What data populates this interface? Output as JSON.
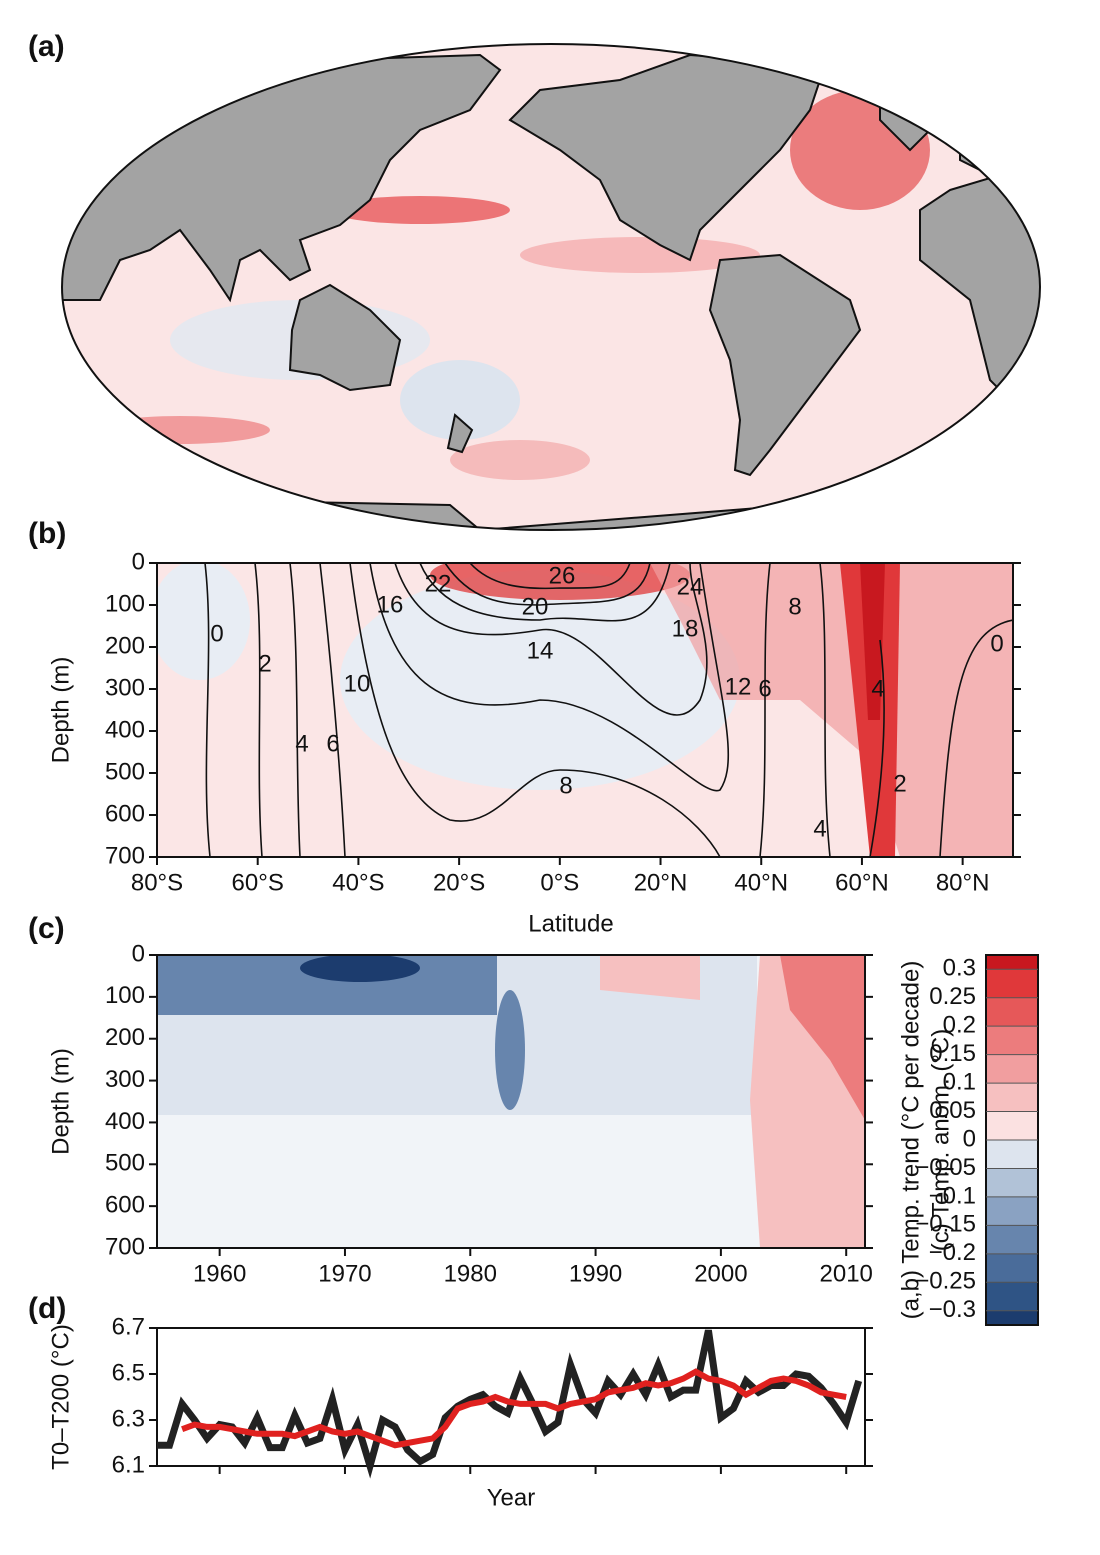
{
  "chart_data": [
    {
      "type": "map",
      "panel_label": "(a)"
    },
    {
      "type": "contour",
      "panel_label": "(b)",
      "xlabel": "Latitude",
      "ylabel": "Depth (m)",
      "xlim": [
        -80,
        90
      ],
      "xticks": [
        {
          "value": -80,
          "label": "80°S"
        },
        {
          "value": -60,
          "label": "60°S"
        },
        {
          "value": -40,
          "label": "40°S"
        },
        {
          "value": -20,
          "label": "20°S"
        },
        {
          "value": 0,
          "label": "0°S"
        },
        {
          "value": 20,
          "label": "20°N"
        },
        {
          "value": 40,
          "label": "40°N"
        },
        {
          "value": 60,
          "label": "60°N"
        },
        {
          "value": 80,
          "label": "80°N"
        }
      ],
      "ylim": [
        700,
        0
      ],
      "yticks": [
        0,
        100,
        200,
        300,
        400,
        500,
        600,
        700
      ],
      "contour_labels": [
        26,
        24,
        22,
        20,
        18,
        16,
        14,
        12,
        10,
        8,
        8,
        6,
        6,
        4,
        4,
        4,
        2,
        2,
        0,
        0
      ]
    },
    {
      "type": "contour",
      "panel_label": "(c)",
      "ylabel": "Depth (m)",
      "xlim": [
        1955,
        2011.5
      ],
      "xticks": [
        1960,
        1970,
        1980,
        1990,
        2000,
        2010
      ],
      "ylim": [
        700,
        0
      ],
      "yticks": [
        0,
        100,
        200,
        300,
        400,
        500,
        600,
        700
      ]
    },
    {
      "type": "line",
      "panel_label": "(d)",
      "xlabel": "Year",
      "ylabel": "T0–T200 (°C)",
      "x": [
        1955,
        1956,
        1957,
        1958,
        1959,
        1960,
        1961,
        1962,
        1963,
        1964,
        1965,
        1966,
        1967,
        1968,
        1969,
        1970,
        1971,
        1972,
        1973,
        1974,
        1975,
        1976,
        1977,
        1978,
        1979,
        1980,
        1981,
        1982,
        1983,
        1984,
        1985,
        1986,
        1987,
        1988,
        1989,
        1990,
        1991,
        1992,
        1993,
        1994,
        1995,
        1996,
        1997,
        1998,
        1999,
        2000,
        2001,
        2002,
        2003,
        2004,
        2005,
        2006,
        2007,
        2008,
        2009,
        2010,
        2011
      ],
      "series": [
        {
          "color": "#222222",
          "values": [
            6.19,
            6.19,
            6.37,
            6.3,
            6.22,
            6.28,
            6.27,
            6.2,
            6.31,
            6.18,
            6.18,
            6.32,
            6.2,
            6.22,
            6.39,
            6.17,
            6.28,
            6.1,
            6.3,
            6.27,
            6.17,
            6.12,
            6.15,
            6.31,
            6.36,
            6.39,
            6.41,
            6.36,
            6.33,
            6.48,
            6.37,
            6.25,
            6.29,
            6.54,
            6.39,
            6.33,
            6.47,
            6.41,
            6.5,
            6.41,
            6.54,
            6.4,
            6.43,
            6.43,
            6.69,
            6.31,
            6.35,
            6.47,
            6.42,
            6.45,
            6.45,
            6.5,
            6.49,
            6.44,
            6.37,
            6.29,
            6.47
          ]
        },
        {
          "color": "#e0211f",
          "values": [
            null,
            null,
            6.26,
            6.28,
            6.27,
            6.27,
            6.26,
            6.25,
            6.24,
            6.24,
            6.24,
            6.23,
            6.25,
            6.27,
            6.25,
            6.24,
            6.25,
            6.23,
            6.21,
            6.19,
            6.2,
            6.21,
            6.22,
            6.27,
            6.35,
            6.37,
            6.38,
            6.4,
            6.38,
            6.37,
            6.37,
            6.37,
            6.35,
            6.37,
            6.38,
            6.39,
            6.42,
            6.43,
            6.44,
            6.46,
            6.45,
            6.46,
            6.48,
            6.51,
            6.48,
            6.47,
            6.45,
            6.41,
            6.44,
            6.47,
            6.48,
            6.47,
            6.45,
            6.42,
            6.41,
            6.4,
            null
          ]
        }
      ],
      "xlim": [
        1955,
        2011.5
      ],
      "xticks": [
        1960,
        1970,
        1980,
        1990,
        2000,
        2010
      ],
      "ylim": [
        6.1,
        6.7
      ],
      "yticks": [
        6.1,
        6.3,
        6.5,
        6.7
      ]
    },
    {
      "type": "colorbar",
      "labels": [
        "(a,b) Temp. trend (°C per decade)",
        "(c) Temp. anom. (°C)"
      ],
      "lim": [
        -0.325,
        0.325
      ],
      "ticks": [
        0.3,
        0.25,
        0.2,
        0.15,
        0.1,
        0.05,
        0,
        {
          "value": -0.05,
          "label": "−0.05"
        },
        {
          "value": -0.1,
          "label": "−0.1"
        },
        {
          "value": -0.15,
          "label": "−0.15"
        },
        {
          "value": -0.2,
          "label": "−0.2"
        },
        {
          "value": -0.25,
          "label": "−0.25"
        },
        {
          "value": -0.3,
          "label": "−0.3"
        }
      ],
      "colors": [
        "#1c3c6e",
        "#2f5485",
        "#4a6c9a",
        "#6785ad",
        "#8aa2c2",
        "#b1c2d7",
        "#dde4ee",
        "#fbe1e1",
        "#f6c0c0",
        "#f19e9f",
        "#ec7c7d",
        "#e65859",
        "#e0383a",
        "#c8181f"
      ]
    }
  ]
}
